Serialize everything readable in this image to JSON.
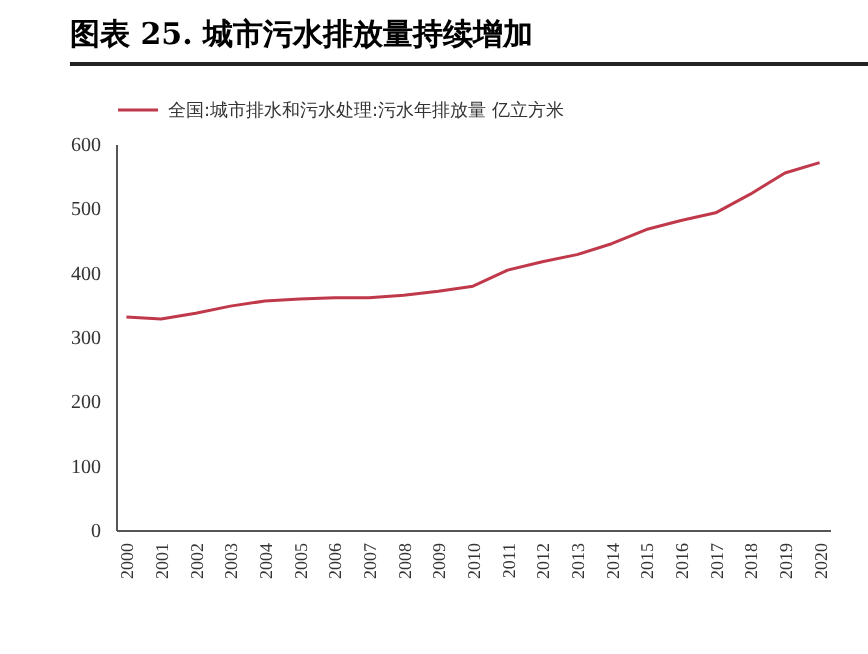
{
  "chart_data": {
    "type": "line",
    "title": "图表 25. 城市污水排放量持续增加",
    "categories": [
      "2000",
      "2001",
      "2002",
      "2003",
      "2004",
      "2005",
      "2006",
      "2007",
      "2008",
      "2009",
      "2010",
      "2011",
      "2012",
      "2013",
      "2014",
      "2015",
      "2016",
      "2017",
      "2018",
      "2019",
      "2020"
    ],
    "series": [
      {
        "name": "全国:城市排水和污水处理:污水年排放量 亿立方米",
        "color": "#c0394b",
        "values": [
          331,
          328,
          337,
          348,
          356,
          359,
          361,
          361,
          365,
          371,
          379,
          404,
          417,
          428,
          445,
          467,
          481,
          493,
          522,
          555,
          571
        ]
      }
    ],
    "ylim": [
      0,
      600
    ],
    "yticks": [
      0,
      100,
      200,
      300,
      400,
      500,
      600
    ],
    "grid": false,
    "legend": "top",
    "marker": "none",
    "line_style": "solid"
  }
}
